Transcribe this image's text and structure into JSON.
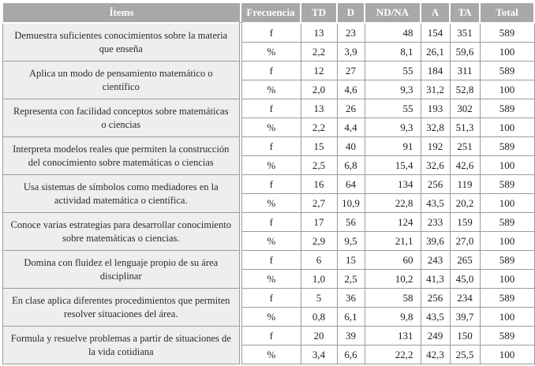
{
  "colors": {
    "header_bg": "#a8a8a8",
    "header_text": "#ffffff",
    "item_bg": "#eeeeee",
    "border": "#9b9b9b",
    "text": "#1e1e1e"
  },
  "table": {
    "headers": [
      "Ítems",
      "Frecuencia",
      "TD",
      "D",
      "ND/NA",
      "A",
      "TA",
      "Total"
    ],
    "freq_labels": [
      "f",
      "%"
    ],
    "rows": [
      {
        "item": "Demuestra suficientes conocimientos sobre la materia que enseña",
        "f": [
          "13",
          "23",
          "48",
          "154",
          "351",
          "589"
        ],
        "pct": [
          "2,2",
          "3,9",
          "8,1",
          "26,1",
          "59,6",
          "100"
        ]
      },
      {
        "item": "Aplica un modo de pensamiento matemático o científico",
        "f": [
          "12",
          "27",
          "55",
          "184",
          "311",
          "589"
        ],
        "pct": [
          "2,0",
          "4,6",
          "9,3",
          "31,2",
          "52,8",
          "100"
        ]
      },
      {
        "item": "Representa con facilidad conceptos sobre matemáticas o ciencias",
        "f": [
          "13",
          "26",
          "55",
          "193",
          "302",
          "589"
        ],
        "pct": [
          "2,2",
          "4,4",
          "9,3",
          "32,8",
          "51,3",
          "100"
        ]
      },
      {
        "item": "Interpreta modelos reales que permiten la construcción del conocimiento sobre matemáticas o ciencias",
        "f": [
          "15",
          "40",
          "91",
          "192",
          "251",
          "589"
        ],
        "pct": [
          "2,5",
          "6,8",
          "15,4",
          "32,6",
          "42,6",
          "100"
        ]
      },
      {
        "item": "Usa sistemas de símbolos como mediadores en la actividad matemática o científica.",
        "f": [
          "16",
          "64",
          "134",
          "256",
          "119",
          "589"
        ],
        "pct": [
          "2,7",
          "10,9",
          "22,8",
          "43,5",
          "20,2",
          "100"
        ]
      },
      {
        "item": "Conoce varias estrategias para desarrollar conocimiento sobre matemáticas o ciencias.",
        "f": [
          "17",
          "56",
          "124",
          "233",
          "159",
          "589"
        ],
        "pct": [
          "2,9",
          "9,5",
          "21,1",
          "39,6",
          "27,0",
          "100"
        ]
      },
      {
        "item": "Domina con fluidez el lenguaje propio de su área disciplinar",
        "f": [
          "6",
          "15",
          "60",
          "243",
          "265",
          "589"
        ],
        "pct": [
          "1,0",
          "2,5",
          "10,2",
          "41,3",
          "45,0",
          "100"
        ]
      },
      {
        "item": "En clase aplica diferentes procedimientos que permiten resolver situaciones del área.",
        "f": [
          "5",
          "36",
          "58",
          "256",
          "234",
          "589"
        ],
        "pct": [
          "0,8",
          "6,1",
          "9,8",
          "43,5",
          "39,7",
          "100"
        ]
      },
      {
        "item": "Formula y resuelve problemas a partir de situaciones de la vida cotidiana",
        "f": [
          "20",
          "39",
          "131",
          "249",
          "150",
          "589"
        ],
        "pct": [
          "3,4",
          "6,6",
          "22,2",
          "42,3",
          "25,5",
          "100"
        ]
      }
    ]
  }
}
